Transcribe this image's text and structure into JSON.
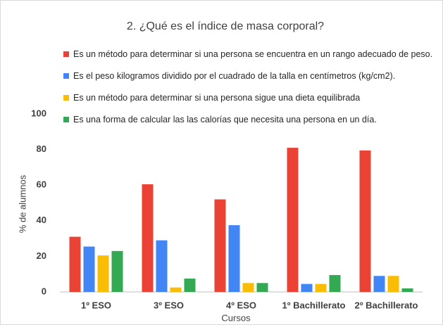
{
  "chart_data": {
    "type": "bar",
    "title": "2. ¿Qué es el índice de masa corporal?",
    "x_label": "Cursos",
    "y_label": "% de alumnos",
    "categories": [
      "1º ESO",
      "3º ESO",
      "4º ESO",
      "1º Bachillerato",
      "2º Bachillerato"
    ],
    "series": [
      {
        "name": "Es un método para determinar si una persona se encuentra en un rango adecuado de peso.",
        "color": "#ea4335",
        "values": [
          31,
          60.5,
          52,
          81,
          79.5
        ]
      },
      {
        "name": "Es el peso kilogramos dividido por el cuadrado de la talla en centímetros (kg/cm2).",
        "color": "#4285f4",
        "values": [
          25.5,
          29,
          37.5,
          4.5,
          9
        ]
      },
      {
        "name": "Es un método para determinar si una persona sigue una dieta equilibrada",
        "color": "#fbbc04",
        "values": [
          20.5,
          2.5,
          5,
          4.5,
          9
        ]
      },
      {
        "name": "Es una forma de calcular las las calorías que necesita una persona en un día.",
        "color": "#34a853",
        "values": [
          23,
          7.5,
          5,
          9.5,
          2
        ]
      }
    ],
    "ylim": [
      0,
      100
    ],
    "yticks": [
      0,
      20,
      40,
      60,
      80,
      100
    ],
    "grid": false
  }
}
